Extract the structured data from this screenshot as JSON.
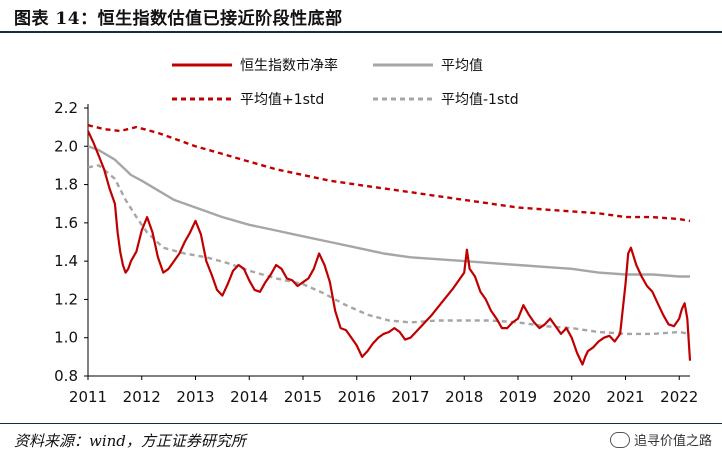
{
  "title": "图表 14：恒生指数估值已接近阶段性底部",
  "source": "资料来源：wind，方正证券研究所",
  "watermark": "追寻价值之路",
  "chart_data": {
    "type": "line",
    "ylim": [
      0.8,
      2.2
    ],
    "yticks": [
      "0.8",
      "1.0",
      "1.2",
      "1.4",
      "1.6",
      "1.8",
      "2.0",
      "2.2"
    ],
    "xlim": [
      2011.0,
      2022.2
    ],
    "xticks": [
      "2011",
      "2012",
      "2013",
      "2014",
      "2015",
      "2016",
      "2017",
      "2018",
      "2019",
      "2020",
      "2021",
      "2022"
    ],
    "grid": false,
    "legend_position": "top",
    "series": [
      {
        "name": "恒生指数市净率",
        "color": "#c00000",
        "style": "solid",
        "x": [
          2011.0,
          2011.1,
          2011.2,
          2011.3,
          2011.4,
          2011.5,
          2011.55,
          2011.6,
          2011.65,
          2011.7,
          2011.75,
          2011.8,
          2011.9,
          2012.0,
          2012.1,
          2012.2,
          2012.3,
          2012.4,
          2012.5,
          2012.6,
          2012.7,
          2012.8,
          2012.9,
          2013.0,
          2013.1,
          2013.2,
          2013.3,
          2013.4,
          2013.5,
          2013.6,
          2013.7,
          2013.8,
          2013.9,
          2014.0,
          2014.1,
          2014.2,
          2014.3,
          2014.4,
          2014.5,
          2014.6,
          2014.7,
          2014.8,
          2014.9,
          2015.0,
          2015.1,
          2015.2,
          2015.3,
          2015.4,
          2015.5,
          2015.6,
          2015.7,
          2015.8,
          2015.9,
          2016.0,
          2016.1,
          2016.2,
          2016.3,
          2016.4,
          2016.5,
          2016.6,
          2016.7,
          2016.8,
          2016.9,
          2017.0,
          2017.2,
          2017.4,
          2017.6,
          2017.8,
          2018.0,
          2018.05,
          2018.1,
          2018.2,
          2018.3,
          2018.4,
          2018.5,
          2018.6,
          2018.7,
          2018.8,
          2018.9,
          2019.0,
          2019.1,
          2019.2,
          2019.3,
          2019.4,
          2019.5,
          2019.6,
          2019.7,
          2019.8,
          2019.9,
          2020.0,
          2020.1,
          2020.2,
          2020.25,
          2020.3,
          2020.4,
          2020.5,
          2020.6,
          2020.7,
          2020.8,
          2020.9,
          2021.0,
          2021.05,
          2021.1,
          2021.2,
          2021.3,
          2021.4,
          2021.5,
          2021.6,
          2021.7,
          2021.8,
          2021.9,
          2022.0,
          2022.05,
          2022.1,
          2022.15,
          2022.2
        ],
        "y": [
          2.08,
          2.02,
          1.95,
          1.88,
          1.78,
          1.7,
          1.55,
          1.45,
          1.38,
          1.34,
          1.36,
          1.4,
          1.45,
          1.56,
          1.63,
          1.55,
          1.42,
          1.34,
          1.36,
          1.4,
          1.44,
          1.5,
          1.55,
          1.61,
          1.54,
          1.4,
          1.33,
          1.25,
          1.22,
          1.28,
          1.35,
          1.38,
          1.36,
          1.3,
          1.25,
          1.24,
          1.29,
          1.33,
          1.38,
          1.36,
          1.31,
          1.3,
          1.27,
          1.29,
          1.31,
          1.36,
          1.44,
          1.38,
          1.29,
          1.14,
          1.05,
          1.04,
          1.0,
          0.96,
          0.9,
          0.93,
          0.97,
          1.0,
          1.02,
          1.03,
          1.05,
          1.03,
          0.99,
          1.0,
          1.06,
          1.12,
          1.19,
          1.26,
          1.34,
          1.46,
          1.36,
          1.32,
          1.24,
          1.2,
          1.14,
          1.1,
          1.05,
          1.05,
          1.08,
          1.1,
          1.17,
          1.12,
          1.08,
          1.05,
          1.07,
          1.1,
          1.06,
          1.02,
          1.05,
          1.0,
          0.92,
          0.86,
          0.9,
          0.93,
          0.95,
          0.98,
          1.0,
          1.01,
          0.98,
          1.02,
          1.28,
          1.44,
          1.47,
          1.38,
          1.32,
          1.27,
          1.24,
          1.18,
          1.12,
          1.07,
          1.06,
          1.1,
          1.15,
          1.18,
          1.1,
          0.88
        ]
      },
      {
        "name": "平均值",
        "color": "#a6a6a6",
        "style": "solid",
        "x": [
          2011.0,
          2011.2,
          2011.5,
          2011.8,
          2012.0,
          2012.3,
          2012.6,
          2013.0,
          2013.5,
          2014.0,
          2014.5,
          2015.0,
          2015.5,
          2016.0,
          2016.5,
          2017.0,
          2017.5,
          2018.0,
          2018.5,
          2019.0,
          2019.5,
          2020.0,
          2020.5,
          2021.0,
          2021.5,
          2022.0,
          2022.2
        ],
        "y": [
          2.0,
          1.98,
          1.93,
          1.85,
          1.82,
          1.77,
          1.72,
          1.68,
          1.63,
          1.59,
          1.56,
          1.53,
          1.5,
          1.47,
          1.44,
          1.42,
          1.41,
          1.4,
          1.39,
          1.38,
          1.37,
          1.36,
          1.34,
          1.33,
          1.33,
          1.32,
          1.32
        ]
      },
      {
        "name": "平均值+1std",
        "color": "#c00000",
        "style": "dashed",
        "x": [
          2011.0,
          2011.3,
          2011.6,
          2011.9,
          2012.3,
          2012.7,
          2013.0,
          2013.5,
          2014.0,
          2014.5,
          2015.0,
          2015.5,
          2016.0,
          2016.5,
          2017.0,
          2017.5,
          2018.0,
          2018.5,
          2019.0,
          2019.5,
          2020.0,
          2020.5,
          2021.0,
          2021.5,
          2022.0,
          2022.2
        ],
        "y": [
          2.11,
          2.09,
          2.08,
          2.1,
          2.07,
          2.03,
          2.0,
          1.96,
          1.92,
          1.88,
          1.85,
          1.82,
          1.8,
          1.78,
          1.76,
          1.74,
          1.72,
          1.7,
          1.68,
          1.67,
          1.66,
          1.65,
          1.63,
          1.63,
          1.62,
          1.61
        ]
      },
      {
        "name": "平均值-1std",
        "color": "#a6a6a6",
        "style": "dashed",
        "x": [
          2011.0,
          2011.2,
          2011.5,
          2011.7,
          2011.9,
          2012.1,
          2012.4,
          2012.8,
          2013.2,
          2013.6,
          2014.0,
          2014.5,
          2015.0,
          2015.4,
          2015.8,
          2016.2,
          2016.6,
          2017.0,
          2017.5,
          2018.0,
          2018.5,
          2019.0,
          2019.5,
          2020.0,
          2020.5,
          2021.0,
          2021.5,
          2022.0,
          2022.2
        ],
        "y": [
          1.89,
          1.9,
          1.83,
          1.72,
          1.63,
          1.55,
          1.47,
          1.44,
          1.42,
          1.39,
          1.35,
          1.31,
          1.28,
          1.23,
          1.17,
          1.12,
          1.09,
          1.08,
          1.09,
          1.09,
          1.09,
          1.08,
          1.06,
          1.05,
          1.03,
          1.02,
          1.02,
          1.03,
          1.02
        ]
      }
    ]
  }
}
